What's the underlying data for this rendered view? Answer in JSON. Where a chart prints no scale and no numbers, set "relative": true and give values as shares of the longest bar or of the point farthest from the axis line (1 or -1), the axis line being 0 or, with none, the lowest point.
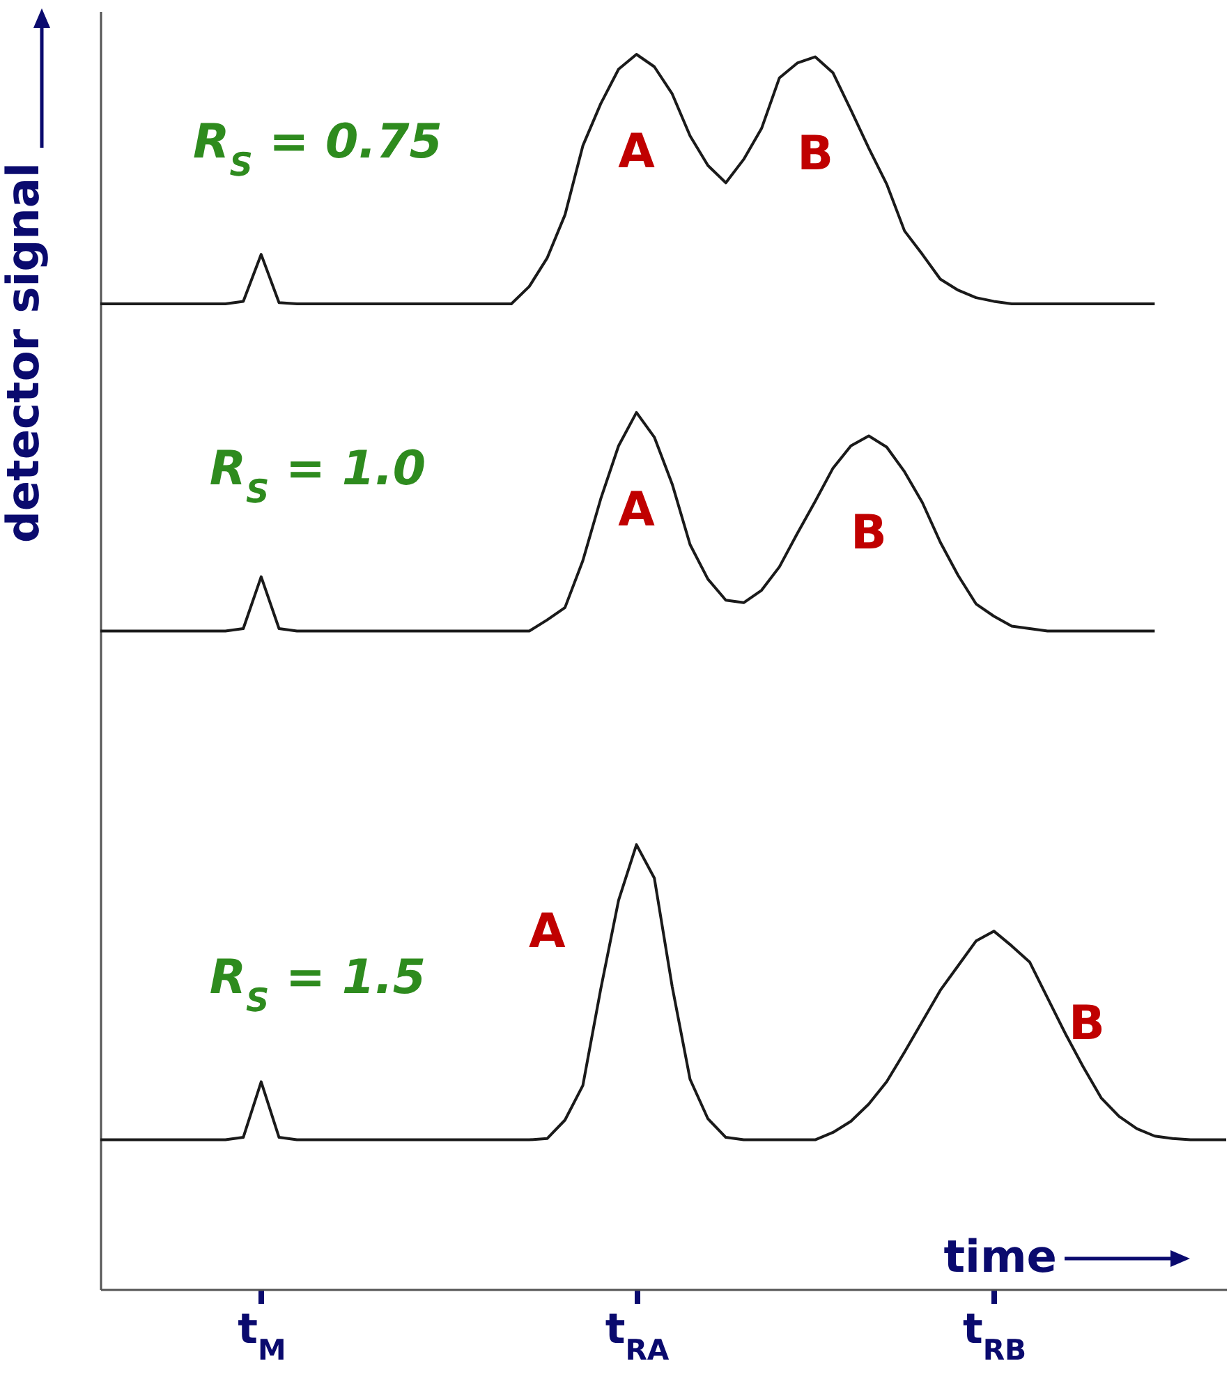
{
  "chart_data": {
    "type": "line",
    "relative": true,
    "xlabel": "time",
    "ylabel": "detector signal",
    "grid": false,
    "marker": "none",
    "line_style": "solid",
    "categories": [
      null,
      null,
      null,
      null,
      null,
      null,
      null,
      null,
      null,
      "t$_{M}$",
      null,
      null,
      null,
      null,
      null,
      null,
      null,
      null,
      null,
      null,
      null,
      null,
      null,
      null,
      null,
      null,
      null,
      null,
      null,
      null,
      "t$_{RA}$",
      null,
      null,
      null,
      null,
      null,
      null,
      null,
      null,
      null,
      null,
      null,
      null,
      null,
      null,
      null,
      null,
      null,
      null,
      null,
      "t$_{RB}$",
      null,
      null,
      null,
      null,
      null,
      null,
      null,
      null,
      null,
      null,
      null,
      null,
      null
    ],
    "series": [
      {
        "color": "#1a1a1a",
        "values": [
          0.798,
          0.798,
          0.798,
          0.798,
          0.798,
          0.798,
          0.798,
          0.798,
          0.8,
          0.838,
          0.799,
          0.798,
          0.798,
          0.798,
          0.798,
          0.798,
          0.798,
          0.798,
          0.798,
          0.798,
          0.798,
          0.798,
          0.798,
          0.798,
          0.812,
          0.835,
          0.87,
          0.926,
          0.96,
          0.988,
          1.0,
          0.99,
          0.968,
          0.934,
          0.91,
          0.896,
          0.915,
          0.94,
          0.981,
          0.993,
          0.998,
          0.985,
          0.955,
          0.924,
          0.895,
          0.857,
          0.838,
          0.818,
          0.809,
          0.803,
          0.8,
          0.798,
          0.798,
          0.798,
          0.798,
          0.798,
          0.798,
          0.798,
          0.798,
          0.798,
          null,
          null,
          null,
          null
        ]
      },
      {
        "color": "#1a1a1a",
        "values": [
          0.533,
          0.533,
          0.533,
          0.533,
          0.533,
          0.533,
          0.533,
          0.533,
          0.535,
          0.577,
          0.535,
          0.533,
          0.533,
          0.533,
          0.533,
          0.533,
          0.533,
          0.533,
          0.533,
          0.533,
          0.533,
          0.533,
          0.533,
          0.533,
          0.533,
          0.542,
          0.552,
          0.59,
          0.64,
          0.683,
          0.71,
          0.69,
          0.652,
          0.603,
          0.575,
          0.558,
          0.556,
          0.566,
          0.585,
          0.612,
          0.638,
          0.665,
          0.683,
          0.691,
          0.682,
          0.662,
          0.637,
          0.605,
          0.578,
          0.555,
          0.545,
          0.537,
          0.535,
          0.533,
          0.533,
          0.533,
          0.533,
          0.533,
          0.533,
          0.533,
          null,
          null,
          null,
          null
        ]
      },
      {
        "color": "#1a1a1a",
        "values": [
          0.121,
          0.121,
          0.121,
          0.121,
          0.121,
          0.121,
          0.121,
          0.121,
          0.123,
          0.168,
          0.123,
          0.121,
          0.121,
          0.121,
          0.121,
          0.121,
          0.121,
          0.121,
          0.121,
          0.121,
          0.121,
          0.121,
          0.121,
          0.121,
          0.121,
          0.122,
          0.137,
          0.165,
          0.243,
          0.315,
          0.36,
          0.333,
          0.245,
          0.17,
          0.138,
          0.123,
          0.121,
          0.121,
          0.121,
          0.121,
          0.121,
          0.127,
          0.136,
          0.15,
          0.168,
          0.192,
          0.217,
          0.242,
          0.262,
          0.282,
          0.29,
          0.278,
          0.265,
          0.236,
          0.207,
          0.18,
          0.155,
          0.14,
          0.13,
          0.124,
          0.122,
          0.121,
          0.121,
          0.121
        ]
      }
    ],
    "annotations": [
      "R$_{S}$ = 0.75",
      "A",
      "B",
      "R$_{S}$ = 1.0",
      "A",
      "B",
      "R$_{S}$ = 1.5",
      "A",
      "B"
    ]
  }
}
